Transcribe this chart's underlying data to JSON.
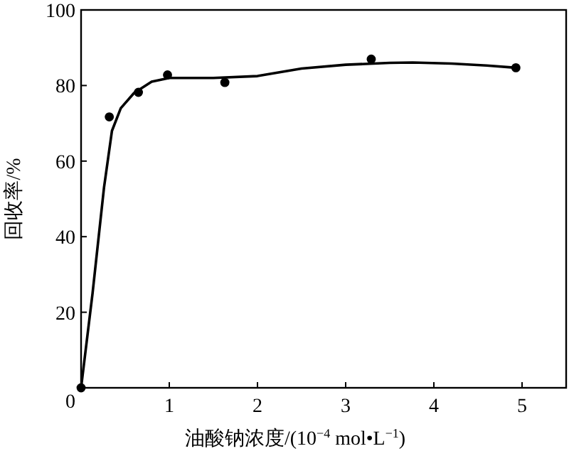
{
  "chart_data": {
    "type": "scatter",
    "xlabel": "油酸钠浓度/(10$^{−4}$ mol•L$^{−1}$)",
    "ylabel": "回收率/%",
    "xlim": [
      0,
      5.5
    ],
    "ylim": [
      0,
      100
    ],
    "xticks": [
      1,
      2,
      3,
      4,
      5
    ],
    "yticks": [
      0,
      20,
      40,
      60,
      80,
      100
    ],
    "grid": false,
    "series": [
      {
        "color": "#000000",
        "marker": "circle",
        "x": [
          0,
          0.32,
          0.65,
          0.98,
          1.63,
          3.29,
          4.93
        ],
        "values": [
          0,
          71.7,
          78.2,
          82.8,
          80.8,
          87,
          84.7
        ]
      },
      {
        "type": "line",
        "color": "#000000",
        "marker": "none",
        "line_style": "solid",
        "x": [
          0,
          0.13,
          0.26,
          0.35,
          0.45,
          0.6,
          0.8,
          1,
          1.5,
          2,
          2.5,
          3,
          3.5,
          3.76,
          4.2,
          4.6,
          4.93
        ],
        "values": [
          0,
          25,
          53,
          68,
          74,
          78,
          81,
          82,
          82,
          82.5,
          84.5,
          85.5,
          86,
          86.1,
          85.8,
          85.3,
          84.7
        ]
      }
    ]
  }
}
